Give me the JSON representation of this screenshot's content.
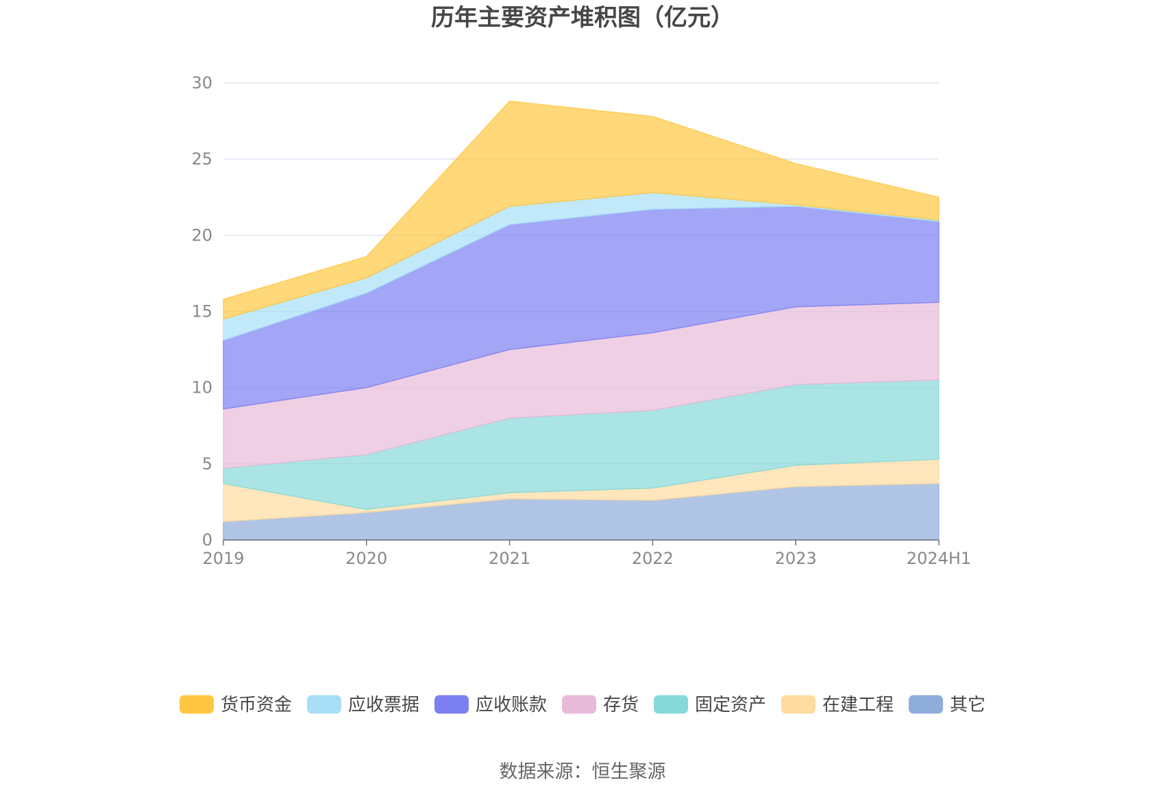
{
  "chart_data": {
    "type": "area",
    "title": "历年主要资产堆积图（亿元）",
    "source": "数据来源：恒生聚源",
    "xlabel": "",
    "ylabel": "",
    "ylim": [
      0,
      30
    ],
    "yticks": [
      0,
      5,
      10,
      15,
      20,
      25,
      30
    ],
    "grid": true,
    "legend_position": "bottom",
    "categories": [
      "2019",
      "2020",
      "2021",
      "2022",
      "2023",
      "2024H1"
    ],
    "stacked": true,
    "series": [
      {
        "name": "其它",
        "color": "#8FADDB",
        "values": [
          1.2,
          1.8,
          2.7,
          2.6,
          3.5,
          3.7
        ]
      },
      {
        "name": "在建工程",
        "color": "#FFDBA0",
        "values": [
          2.5,
          0.2,
          0.4,
          0.8,
          1.4,
          1.6
        ]
      },
      {
        "name": "固定资产",
        "color": "#86D9D9",
        "values": [
          1.0,
          3.6,
          4.9,
          5.1,
          5.3,
          5.2
        ]
      },
      {
        "name": "存货",
        "color": "#E8BAD9",
        "values": [
          3.9,
          4.4,
          4.5,
          5.1,
          5.1,
          5.1
        ]
      },
      {
        "name": "应收账款",
        "color": "#7C80F2",
        "values": [
          4.5,
          6.2,
          8.2,
          8.1,
          6.6,
          5.3
        ]
      },
      {
        "name": "应收票据",
        "color": "#A8DFF7",
        "values": [
          1.4,
          1.0,
          1.2,
          1.1,
          0.1,
          0.1
        ]
      },
      {
        "name": "货币资金",
        "color": "#FFC741",
        "values": [
          1.3,
          1.4,
          6.9,
          5.0,
          2.7,
          1.5
        ]
      }
    ]
  }
}
